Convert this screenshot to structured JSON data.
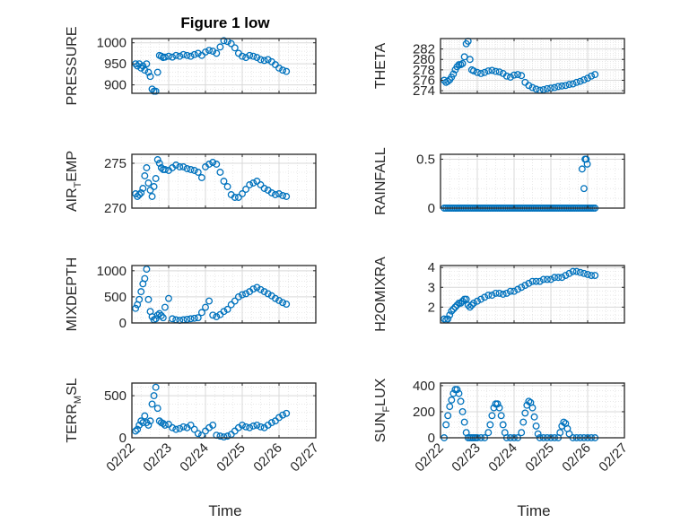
{
  "figure": {
    "title": "Figure 1 low",
    "x_label": "Time",
    "x_tick_labels": [
      "02/22",
      "02/23",
      "02/24",
      "02/25",
      "02/26",
      "02/27"
    ],
    "marker_color": "#0072BD",
    "grid_color": "#d9d9d9"
  },
  "chart_data": [
    {
      "type": "scatter",
      "ylabel": "PRESSURE",
      "ylim": [
        880,
        1010
      ],
      "yticks": [
        900,
        950,
        1000
      ],
      "xlim": [
        0,
        5
      ],
      "grid": true,
      "x": [
        0.1,
        0.15,
        0.2,
        0.25,
        0.3,
        0.35,
        0.4,
        0.45,
        0.5,
        0.55,
        0.6,
        0.65,
        0.7,
        0.75,
        0.8,
        0.85,
        0.9,
        1.0,
        1.1,
        1.2,
        1.3,
        1.4,
        1.5,
        1.6,
        1.7,
        1.8,
        1.9,
        2.0,
        2.1,
        2.2,
        2.3,
        2.4,
        2.5,
        2.6,
        2.7,
        2.8,
        2.9,
        3.0,
        3.1,
        3.2,
        3.3,
        3.4,
        3.5,
        3.6,
        3.7,
        3.8,
        3.9,
        4.0,
        4.1,
        4.2
      ],
      "y": [
        950,
        945,
        950,
        940,
        945,
        935,
        950,
        930,
        920,
        890,
        885,
        885,
        930,
        970,
        968,
        965,
        966,
        968,
        966,
        970,
        968,
        972,
        970,
        968,
        972,
        975,
        970,
        978,
        982,
        980,
        975,
        990,
        1005,
        1003,
        998,
        988,
        975,
        968,
        965,
        970,
        968,
        965,
        960,
        958,
        960,
        955,
        948,
        940,
        935,
        932
      ]
    },
    {
      "type": "scatter",
      "ylabel": "THETA",
      "ylim": [
        273.5,
        284
      ],
      "yticks": [
        274,
        276,
        278,
        280,
        282
      ],
      "xlim": [
        0,
        5
      ],
      "grid": true,
      "x": [
        0.1,
        0.15,
        0.2,
        0.25,
        0.3,
        0.35,
        0.4,
        0.45,
        0.5,
        0.55,
        0.6,
        0.65,
        0.7,
        0.75,
        0.8,
        0.85,
        0.9,
        1.0,
        1.1,
        1.2,
        1.3,
        1.4,
        1.5,
        1.6,
        1.7,
        1.8,
        1.9,
        2.0,
        2.1,
        2.2,
        2.3,
        2.4,
        2.5,
        2.6,
        2.7,
        2.8,
        2.9,
        3.0,
        3.1,
        3.2,
        3.3,
        3.4,
        3.5,
        3.6,
        3.7,
        3.8,
        3.9,
        4.0,
        4.1,
        4.2
      ],
      "y": [
        276,
        275.6,
        275.8,
        276.1,
        276.6,
        277.2,
        278,
        278.6,
        279,
        279,
        279.2,
        280.5,
        283,
        283.5,
        280,
        278,
        277.8,
        277.5,
        277.3,
        277.5,
        277.8,
        277.9,
        277.7,
        277.6,
        277.3,
        276.8,
        276.6,
        277,
        277.1,
        276.9,
        275.6,
        275,
        274.6,
        274.3,
        274.1,
        274.2,
        274.4,
        274.5,
        274.6,
        274.8,
        274.9,
        275,
        275.2,
        275.3,
        275.6,
        275.8,
        276.1,
        276.4,
        276.8,
        277.1
      ]
    },
    {
      "type": "scatter",
      "ylabel": "AIR",
      "ylabel_sub": "T",
      "ylabel_rest": "EMP",
      "ylim": [
        270,
        276
      ],
      "yticks": [
        270,
        275
      ],
      "xlim": [
        0,
        5
      ],
      "grid": true,
      "x": [
        0.1,
        0.15,
        0.2,
        0.25,
        0.3,
        0.35,
        0.4,
        0.45,
        0.5,
        0.55,
        0.6,
        0.65,
        0.7,
        0.75,
        0.8,
        0.85,
        0.9,
        1.0,
        1.1,
        1.2,
        1.3,
        1.4,
        1.5,
        1.6,
        1.7,
        1.8,
        1.9,
        2.0,
        2.1,
        2.2,
        2.3,
        2.4,
        2.5,
        2.6,
        2.7,
        2.8,
        2.9,
        3.0,
        3.1,
        3.2,
        3.3,
        3.4,
        3.5,
        3.6,
        3.7,
        3.8,
        3.9,
        4.0,
        4.1,
        4.2
      ],
      "y": [
        271.6,
        271.3,
        271.5,
        271.7,
        272.2,
        273.6,
        274.5,
        272.8,
        272,
        271.3,
        272.4,
        273.3,
        275.4,
        275,
        274.5,
        274.3,
        274.3,
        274.2,
        274.5,
        274.8,
        274.6,
        274.6,
        274.4,
        274.3,
        274.2,
        274,
        273.4,
        274.6,
        274.9,
        275.1,
        274.9,
        274,
        273,
        272.4,
        271.5,
        271.2,
        271.2,
        271.6,
        272.1,
        272.6,
        272.8,
        273,
        272.6,
        272.2,
        272,
        271.7,
        271.5,
        271.6,
        271.4,
        271.3
      ]
    },
    {
      "type": "scatter",
      "ylabel": "RAINFALL",
      "ylim": [
        0,
        0.55
      ],
      "yticks": [
        0,
        0.5
      ],
      "xlim": [
        0,
        5
      ],
      "grid": true,
      "x_dense_zero_range": [
        0.1,
        4.2
      ],
      "x": [
        3.85,
        3.9,
        3.93,
        3.96,
        3.99
      ],
      "y": [
        0.4,
        0.2,
        0.5,
        0.5,
        0.45
      ]
    },
    {
      "type": "scatter",
      "ylabel": "MIXDEPTH",
      "ylim": [
        0,
        1100
      ],
      "yticks": [
        0,
        500,
        1000
      ],
      "xlim": [
        0,
        5
      ],
      "grid": true,
      "x": [
        0.1,
        0.15,
        0.2,
        0.25,
        0.3,
        0.35,
        0.4,
        0.45,
        0.5,
        0.55,
        0.6,
        0.65,
        0.7,
        0.75,
        0.8,
        0.85,
        0.9,
        1.0,
        1.1,
        1.2,
        1.3,
        1.4,
        1.5,
        1.6,
        1.7,
        1.8,
        1.9,
        2.0,
        2.1,
        2.2,
        2.3,
        2.4,
        2.5,
        2.6,
        2.7,
        2.8,
        2.9,
        3.0,
        3.1,
        3.2,
        3.3,
        3.4,
        3.5,
        3.6,
        3.7,
        3.8,
        3.9,
        4.0,
        4.1,
        4.2
      ],
      "y": [
        280,
        350,
        450,
        600,
        750,
        850,
        1030,
        450,
        220,
        120,
        60,
        80,
        150,
        180,
        140,
        100,
        300,
        470,
        80,
        60,
        50,
        60,
        70,
        80,
        90,
        100,
        200,
        300,
        420,
        150,
        120,
        160,
        220,
        260,
        350,
        420,
        500,
        540,
        560,
        600,
        650,
        680,
        640,
        600,
        560,
        520,
        470,
        430,
        390,
        360
      ]
    },
    {
      "type": "scatter",
      "ylabel": "H2OMIXRA",
      "ylim": [
        1.2,
        4.1
      ],
      "yticks": [
        2,
        3,
        4
      ],
      "xlim": [
        0,
        5
      ],
      "grid": true,
      "x": [
        0.1,
        0.15,
        0.2,
        0.25,
        0.3,
        0.35,
        0.4,
        0.45,
        0.5,
        0.55,
        0.6,
        0.65,
        0.7,
        0.75,
        0.8,
        0.85,
        0.9,
        1.0,
        1.1,
        1.2,
        1.3,
        1.4,
        1.5,
        1.6,
        1.7,
        1.8,
        1.9,
        2.0,
        2.1,
        2.2,
        2.3,
        2.4,
        2.5,
        2.6,
        2.7,
        2.8,
        2.9,
        3.0,
        3.1,
        3.2,
        3.3,
        3.4,
        3.5,
        3.6,
        3.7,
        3.8,
        3.9,
        4.0,
        4.1,
        4.2
      ],
      "y": [
        1.4,
        1.35,
        1.4,
        1.6,
        1.8,
        1.9,
        2.0,
        2.1,
        2.2,
        2.2,
        2.3,
        2.4,
        2.4,
        2.1,
        2.0,
        2.1,
        2.2,
        2.3,
        2.4,
        2.5,
        2.6,
        2.6,
        2.7,
        2.7,
        2.65,
        2.7,
        2.8,
        2.8,
        2.9,
        3.0,
        3.1,
        3.2,
        3.3,
        3.3,
        3.3,
        3.4,
        3.4,
        3.4,
        3.5,
        3.5,
        3.5,
        3.6,
        3.7,
        3.8,
        3.8,
        3.75,
        3.7,
        3.65,
        3.6,
        3.6
      ]
    },
    {
      "type": "scatter",
      "ylabel": "TERR",
      "ylabel_sub": "M",
      "ylabel_rest": "SL",
      "ylim": [
        0,
        650
      ],
      "yticks": [
        0,
        500
      ],
      "xlim": [
        0,
        5
      ],
      "grid": true,
      "x": [
        0.1,
        0.15,
        0.2,
        0.25,
        0.3,
        0.35,
        0.4,
        0.45,
        0.5,
        0.55,
        0.6,
        0.65,
        0.7,
        0.75,
        0.8,
        0.85,
        0.9,
        1.0,
        1.1,
        1.2,
        1.3,
        1.4,
        1.5,
        1.6,
        1.7,
        1.8,
        1.9,
        2.0,
        2.1,
        2.2,
        2.3,
        2.4,
        2.5,
        2.6,
        2.7,
        2.8,
        2.9,
        3.0,
        3.1,
        3.2,
        3.3,
        3.4,
        3.5,
        3.6,
        3.7,
        3.8,
        3.9,
        4.0,
        4.1,
        4.2
      ],
      "y": [
        80,
        100,
        150,
        200,
        180,
        260,
        180,
        150,
        200,
        400,
        500,
        600,
        350,
        200,
        180,
        170,
        150,
        160,
        120,
        100,
        110,
        130,
        120,
        150,
        100,
        50,
        30,
        80,
        120,
        150,
        30,
        20,
        10,
        20,
        40,
        80,
        120,
        150,
        130,
        120,
        140,
        150,
        130,
        120,
        150,
        180,
        200,
        240,
        270,
        290
      ]
    },
    {
      "type": "scatter",
      "ylabel": "SUN",
      "ylabel_sub": "F",
      "ylabel_rest": "LUX",
      "ylim": [
        0,
        420
      ],
      "yticks": [
        0,
        200,
        400
      ],
      "xlim": [
        0,
        5
      ],
      "grid": true,
      "x": [
        0.1,
        0.15,
        0.2,
        0.25,
        0.3,
        0.35,
        0.4,
        0.45,
        0.5,
        0.55,
        0.6,
        0.65,
        0.7,
        0.75,
        0.8,
        0.85,
        0.9,
        0.95,
        1.0,
        1.1,
        1.2,
        1.3,
        1.35,
        1.4,
        1.45,
        1.5,
        1.55,
        1.6,
        1.65,
        1.7,
        1.75,
        1.8,
        1.9,
        2.0,
        2.1,
        2.2,
        2.25,
        2.3,
        2.35,
        2.4,
        2.45,
        2.5,
        2.55,
        2.6,
        2.65,
        2.7,
        2.8,
        2.9,
        3.0,
        3.1,
        3.2,
        3.25,
        3.3,
        3.35,
        3.4,
        3.45,
        3.5,
        3.6,
        3.7,
        3.8,
        3.9,
        4.0,
        4.1,
        4.2
      ],
      "y": [
        0,
        100,
        170,
        240,
        290,
        340,
        370,
        370,
        340,
        280,
        200,
        120,
        40,
        0,
        0,
        0,
        0,
        0,
        0,
        0,
        0,
        40,
        100,
        170,
        230,
        260,
        260,
        230,
        170,
        100,
        40,
        0,
        0,
        0,
        0,
        40,
        120,
        190,
        250,
        280,
        270,
        230,
        160,
        90,
        30,
        0,
        0,
        0,
        0,
        0,
        0,
        40,
        90,
        120,
        110,
        70,
        30,
        0,
        0,
        0,
        0,
        0,
        0,
        0
      ]
    }
  ]
}
